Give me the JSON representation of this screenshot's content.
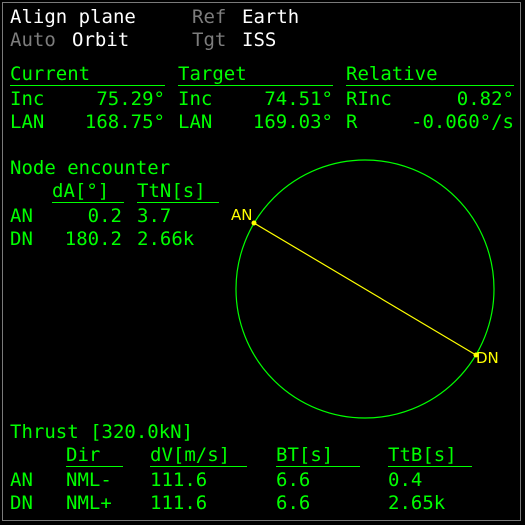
{
  "header": {
    "mode_label": "Align plane",
    "ref_label": "Ref",
    "ref_value": "Earth",
    "auto_label": "Auto",
    "auto_value": "Orbit",
    "tgt_label": "Tgt",
    "tgt_value": "ISS"
  },
  "current": {
    "title": "Current",
    "inc_label": "Inc",
    "inc_value": "75.29°",
    "lan_label": "LAN",
    "lan_value": "168.75°"
  },
  "target": {
    "title": "Target",
    "inc_label": "Inc",
    "inc_value": "74.51°",
    "lan_label": "LAN",
    "lan_value": "169.03°"
  },
  "relative": {
    "title": "Relative",
    "rinc_label": "RInc",
    "rinc_value": "0.82°",
    "r_label": "R",
    "r_value": "-0.060°/s"
  },
  "nodes": {
    "title": "Node encounter",
    "col_da": "dA[°]",
    "col_ttn": "TtN[s]",
    "rows": [
      {
        "name": "AN",
        "da": "0.2",
        "ttn": "3.7"
      },
      {
        "name": "DN",
        "da": "180.2",
        "ttn": "2.66k"
      }
    ]
  },
  "diagram": {
    "an_label": "AN",
    "dn_label": "DN",
    "orbit_color": "#00ff00",
    "line_color": "#ffff00"
  },
  "thrust": {
    "title": "Thrust [320.0kN]",
    "col_dir": "Dir",
    "col_dv": "dV[m/s]",
    "col_bt": "BT[s]",
    "col_ttb": "TtB[s]",
    "rows": [
      {
        "name": "AN",
        "dir": "NML-",
        "dv": "111.6",
        "bt": "6.6",
        "ttb": "0.4"
      },
      {
        "name": "DN",
        "dir": "NML+",
        "dv": "111.6",
        "bt": "6.6",
        "ttb": "2.65k"
      }
    ]
  }
}
